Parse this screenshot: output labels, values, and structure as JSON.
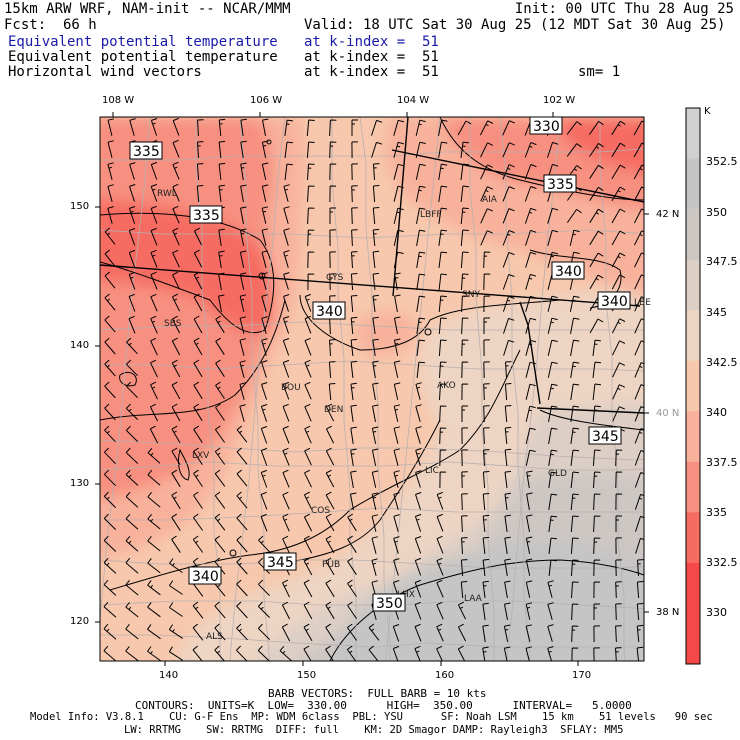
{
  "header": {
    "model_title": "15km ARW WRF, NAM-init -- NCAR/MMM",
    "init_time": "Init: 00 UTC Thu 28 Aug 25",
    "fcst_label": "Fcst:",
    "fcst_value": "66 h",
    "valid_time": "Valid: 18 UTC Sat 30 Aug 25 (12 MDT Sat 30 Aug 25)",
    "fields": [
      {
        "name": "Equivalent potential temperature",
        "level": "at k-index =  51"
      },
      {
        "name": "Equivalent potential temperature",
        "level": "at k-index =  51"
      },
      {
        "name": "Horizontal wind vectors",
        "level": "at k-index =  51"
      }
    ],
    "smoothing": "sm= 1"
  },
  "map": {
    "lon_labels": [
      "108 W",
      "106 W",
      "104 W",
      "102 W"
    ],
    "lat_labels": [
      "42 N",
      "40 N",
      "38 N"
    ],
    "grid_x_labels": [
      "140",
      "150",
      "160",
      "170"
    ],
    "grid_y_labels": [
      "150",
      "140",
      "130",
      "120"
    ],
    "stations": [
      "RWL",
      "LBFF",
      "AIA",
      "CYS",
      "SNY",
      "LBE",
      "SBS",
      "BOU",
      "DEN",
      "AKO",
      "LXV",
      "LIC",
      "GLD",
      "COS",
      "PUB",
      "LAA",
      "LHX",
      "ALS"
    ],
    "contour_labels": [
      "335",
      "330",
      "335",
      "335",
      "340",
      "340",
      "340",
      "345",
      "345",
      "340",
      "350"
    ],
    "colors": {
      "c330": "#f54848",
      "c332": "#f66c62",
      "c335": "#f79080",
      "c337": "#f8b29c",
      "c340": "#f7c8ad",
      "c342": "#eed4c2",
      "c345": "#ddcfc6",
      "c347": "#cdc7c4",
      "c350": "#c5c5c5"
    }
  },
  "colorbar": {
    "unit": "K",
    "labels": [
      "352.5",
      "350",
      "347.5",
      "345",
      "342.5",
      "340",
      "337.5",
      "335",
      "332.5",
      "330"
    ]
  },
  "footer": {
    "barb_info": "BARB VECTORS:  FULL BARB = 10 kts",
    "contour_info": "CONTOURS:  UNITS=K  LOW=  330.00      HIGH=  350.00      INTERVAL=   5.0000",
    "model_info_1": "Model Info: V3.8.1    CU: G-F Ens  MP: WDM 6class  PBL: YSU      SF: Noah LSM    15 km    51 levels   90 sec",
    "model_info_2": "LW: RRTMG    SW: RRTMG  DIFF: full    KM: 2D Smagor DAMP: Rayleigh3  SFLAY: MM5"
  }
}
